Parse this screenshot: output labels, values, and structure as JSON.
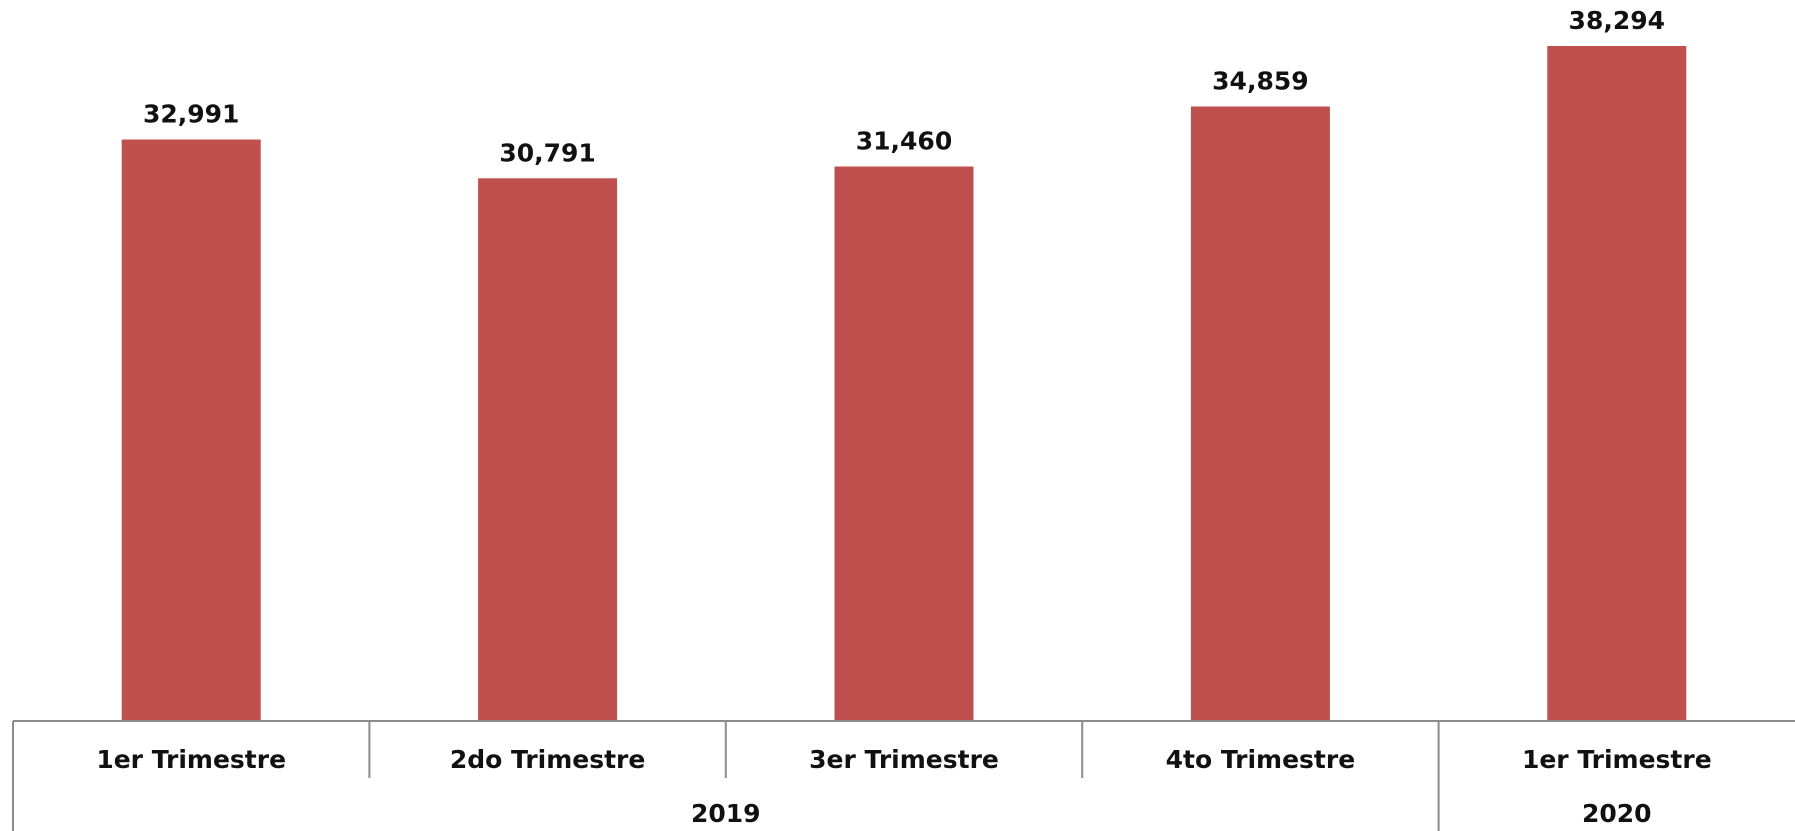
{
  "chart_data": {
    "type": "bar",
    "title": "",
    "xlabel": "",
    "ylabel": "",
    "ylim": [
      0,
      38294
    ],
    "grid": false,
    "legend": "none",
    "bar_color": "#c0504d",
    "categories": [
      "1er Trimestre",
      "2do Trimestre",
      "3er Trimestre",
      "4to Trimestre",
      "1er Trimestre"
    ],
    "values": [
      32991,
      30791,
      31460,
      34859,
      38294
    ],
    "data_labels": [
      "32,991",
      "30,791",
      "31,460",
      "34,859",
      "38,294"
    ],
    "groups": [
      {
        "label": "2019",
        "categories": 4
      },
      {
        "label": "2020",
        "categories": 1
      }
    ]
  }
}
